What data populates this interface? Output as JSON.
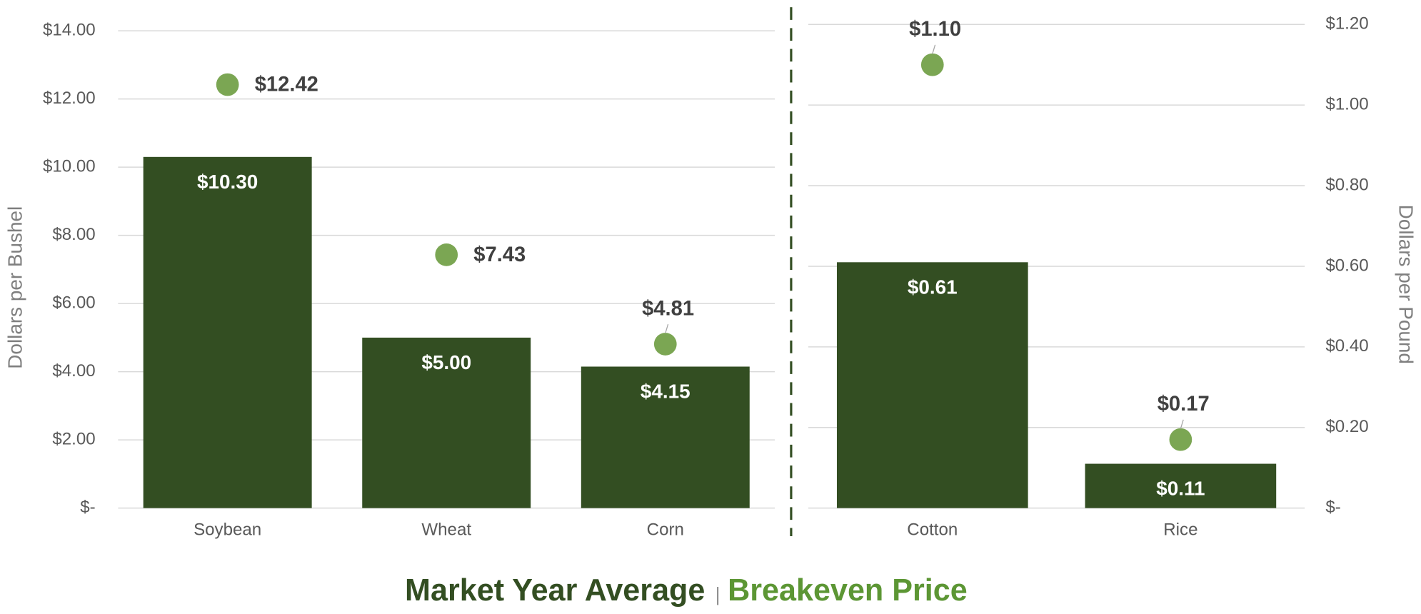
{
  "chart_data": [
    {
      "type": "bar",
      "ylabel": "Dollars per Bushel",
      "yaxis_side": "left",
      "categories": [
        "Soybean",
        "Wheat",
        "Corn"
      ],
      "ylim": [
        0,
        14
      ],
      "yticks": [
        {
          "value": 0,
          "label": "$-"
        },
        {
          "value": 2,
          "label": "$2.00"
        },
        {
          "value": 4,
          "label": "$4.00"
        },
        {
          "value": 6,
          "label": "$6.00"
        },
        {
          "value": 8,
          "label": "$8.00"
        },
        {
          "value": 10,
          "label": "$10.00"
        },
        {
          "value": 12,
          "label": "$12.00"
        },
        {
          "value": 14,
          "label": "$14.00"
        }
      ],
      "grid": true,
      "series": [
        {
          "name": "Market Year Average",
          "mark": "bar",
          "color": "#334e22",
          "values": [
            10.3,
            5.0,
            4.15
          ],
          "value_labels": [
            "$10.30",
            "$5.00",
            "$4.15"
          ]
        },
        {
          "name": "Breakeven Price",
          "mark": "dot",
          "color": "#7ba653",
          "values": [
            12.42,
            7.43,
            4.81
          ],
          "value_labels": [
            "$12.42",
            "$7.43",
            "$4.81"
          ]
        }
      ]
    },
    {
      "type": "bar",
      "ylabel": "Dollars per Pound",
      "yaxis_side": "right",
      "categories": [
        "Cotton",
        "Rice"
      ],
      "ylim": [
        0,
        1.2
      ],
      "yticks": [
        {
          "value": 0,
          "label": "$-"
        },
        {
          "value": 0.2,
          "label": "$0.20"
        },
        {
          "value": 0.4,
          "label": "$0.40"
        },
        {
          "value": 0.6,
          "label": "$0.60"
        },
        {
          "value": 0.8,
          "label": "$0.80"
        },
        {
          "value": 1.0,
          "label": "$1.00"
        },
        {
          "value": 1.2,
          "label": "$1.20"
        }
      ],
      "grid": true,
      "series": [
        {
          "mark": "bar",
          "color": "#334e22",
          "values": [
            0.61,
            0.11
          ],
          "value_labels": [
            "$0.61",
            "$0.11"
          ]
        },
        {
          "mark": "dot",
          "color": "#7ba653",
          "values": [
            1.1,
            0.17
          ],
          "value_labels": [
            "$1.10",
            "$0.17"
          ]
        }
      ]
    }
  ]
}
